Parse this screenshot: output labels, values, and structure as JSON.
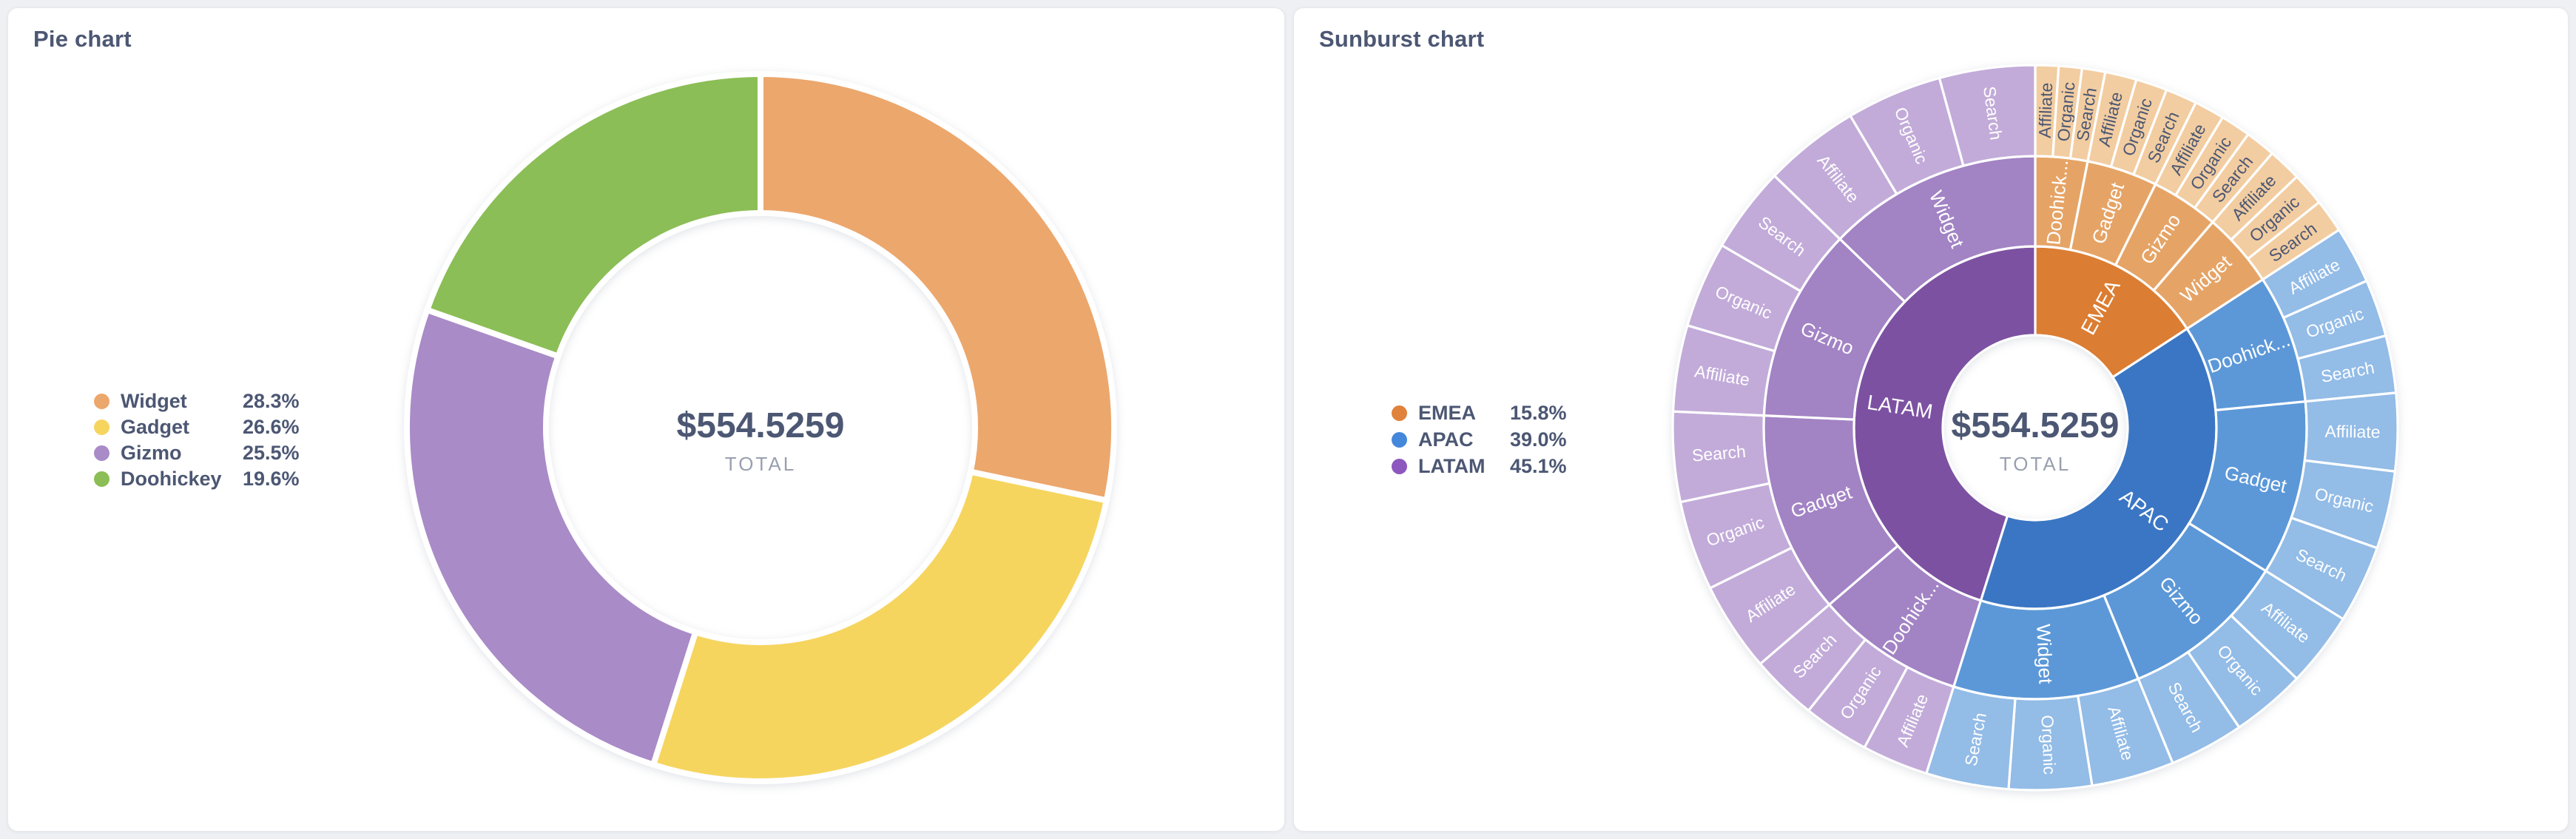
{
  "cards": [
    {
      "title": "Pie chart",
      "total_value": "$554.5259",
      "total_label": "TOTAL"
    },
    {
      "title": "Sunburst chart",
      "total_value": "$554.5259",
      "total_label": "TOTAL"
    }
  ],
  "chart_data": [
    {
      "type": "pie",
      "title": "Pie chart",
      "donut": true,
      "total_value": "$554.5259",
      "total_label": "TOTAL",
      "legend_position": "left",
      "slices": [
        {
          "label": "Widget",
          "percent": 28.3,
          "display": "28.3%",
          "color": "#ECA76D"
        },
        {
          "label": "Gadget",
          "percent": 26.6,
          "display": "26.6%",
          "color": "#F6D55F"
        },
        {
          "label": "Gizmo",
          "percent": 25.5,
          "display": "25.5%",
          "color": "#A98BC7"
        },
        {
          "label": "Doohickey",
          "percent": 19.6,
          "display": "19.6%",
          "color": "#8BBE56"
        }
      ]
    },
    {
      "type": "sunburst",
      "title": "Sunburst chart",
      "total_value": "$554.5259",
      "total_label": "TOTAL",
      "legend_position": "left",
      "rings": [
        "region",
        "product",
        "channel"
      ],
      "regions": [
        {
          "label": "EMEA",
          "percent": 15.8,
          "display": "15.8%",
          "legend_color": "#E0823C",
          "ring_colors": {
            "inner": "#DB7D32",
            "middle": "#E5A466",
            "outer": "#F2CDA1"
          },
          "outer_label_color": "#4C5773",
          "products": [
            {
              "label": "Doohickey",
              "display": "Doohick...",
              "share": 0.196,
              "channels": [
                "Affiliate",
                "Organic",
                "Search"
              ]
            },
            {
              "label": "Gadget",
              "display": "Gadget",
              "share": 0.266,
              "channels": [
                "Affiliate",
                "Organic",
                "Search"
              ]
            },
            {
              "label": "Gizmo",
              "display": "Gizmo",
              "share": 0.255,
              "channels": [
                "Affiliate",
                "Organic",
                "Search"
              ]
            },
            {
              "label": "Widget",
              "display": "Widget",
              "share": 0.283,
              "channels": [
                "Affiliate",
                "Organic",
                "Search"
              ]
            }
          ]
        },
        {
          "label": "APAC",
          "percent": 39.0,
          "display": "39.0%",
          "legend_color": "#4587DB",
          "ring_colors": {
            "inner": "#3B76C4",
            "middle": "#5C98D8",
            "outer": "#93BCE7"
          },
          "outer_label_color": "#FFFFFF",
          "products": [
            {
              "label": "Doohickey",
              "display": "Doohick...",
              "share": 0.196,
              "channels": [
                "Affiliate",
                "Organic",
                "Search"
              ]
            },
            {
              "label": "Gadget",
              "display": "Gadget",
              "share": 0.266,
              "channels": [
                "Affiliate",
                "Organic",
                "Search"
              ]
            },
            {
              "label": "Gizmo",
              "display": "Gizmo",
              "share": 0.255,
              "channels": [
                "Affiliate",
                "Organic",
                "Search"
              ]
            },
            {
              "label": "Widget",
              "display": "Widget",
              "share": 0.283,
              "channels": [
                "Affiliate",
                "Organic",
                "Search"
              ]
            }
          ]
        },
        {
          "label": "LATAM",
          "percent": 45.1,
          "display": "45.1%",
          "legend_color": "#8C57BE",
          "ring_colors": {
            "inner": "#7C51A2",
            "middle": "#A283C4",
            "outer": "#C2ABD9"
          },
          "outer_label_color": "#FFFFFF",
          "products": [
            {
              "label": "Doohickey",
              "display": "Doohick...",
              "share": 0.196,
              "channels": [
                "Affiliate",
                "Organic",
                "Search"
              ]
            },
            {
              "label": "Gadget",
              "display": "Gadget",
              "share": 0.266,
              "channels": [
                "Affiliate",
                "Organic",
                "Search"
              ]
            },
            {
              "label": "Gizmo",
              "display": "Gizmo",
              "share": 0.255,
              "channels": [
                "Affiliate",
                "Organic",
                "Search"
              ]
            },
            {
              "label": "Widget",
              "display": "Widget",
              "share": 0.283,
              "channels": [
                "Affiliate",
                "Organic",
                "Search"
              ]
            }
          ]
        }
      ]
    }
  ]
}
